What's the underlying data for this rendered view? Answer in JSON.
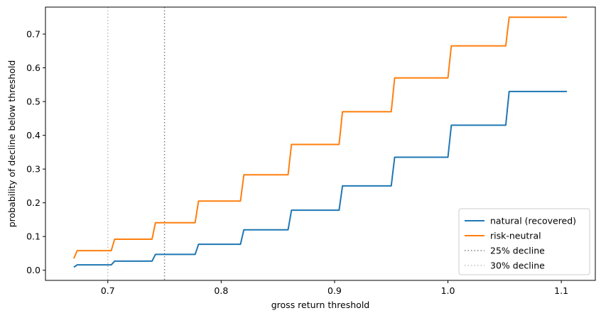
{
  "chart_data": {
    "type": "line",
    "xlabel": "gross return threshold",
    "ylabel": "probability of decline below threshold",
    "xlim": [
      0.645,
      1.13
    ],
    "ylim": [
      -0.03,
      0.78
    ],
    "xticks": [
      0.7,
      0.8,
      0.9,
      1.0,
      1.1
    ],
    "xtick_labels": [
      "0.7",
      "0.8",
      "0.9",
      "1.0",
      "1.1"
    ],
    "yticks": [
      0.0,
      0.1,
      0.2,
      0.3,
      0.4,
      0.5,
      0.6,
      0.7
    ],
    "ytick_labels": [
      "0.0",
      "0.1",
      "0.2",
      "0.3",
      "0.4",
      "0.5",
      "0.6",
      "0.7"
    ],
    "grid": false,
    "legend_position": "bottom-right",
    "series": [
      {
        "name": "natural (recovered)",
        "color": "#1f77b4",
        "style": "solid",
        "x": [
          0.67,
          0.673,
          0.703,
          0.706,
          0.739,
          0.742,
          0.777,
          0.78,
          0.817,
          0.82,
          0.859,
          0.862,
          0.904,
          0.907,
          0.95,
          0.953,
          1.0,
          1.003,
          1.051,
          1.054,
          1.105
        ],
        "y": [
          0.009,
          0.016,
          0.016,
          0.027,
          0.027,
          0.047,
          0.047,
          0.077,
          0.077,
          0.12,
          0.12,
          0.178,
          0.178,
          0.25,
          0.25,
          0.335,
          0.335,
          0.43,
          0.43,
          0.53,
          0.53
        ]
      },
      {
        "name": "risk-neutral",
        "color": "#ff7f0e",
        "style": "solid",
        "x": [
          0.67,
          0.673,
          0.703,
          0.706,
          0.739,
          0.742,
          0.777,
          0.78,
          0.817,
          0.82,
          0.859,
          0.862,
          0.904,
          0.907,
          0.95,
          0.953,
          1.0,
          1.003,
          1.051,
          1.054,
          1.105
        ],
        "y": [
          0.035,
          0.058,
          0.058,
          0.092,
          0.092,
          0.141,
          0.141,
          0.205,
          0.205,
          0.283,
          0.283,
          0.373,
          0.373,
          0.47,
          0.47,
          0.57,
          0.57,
          0.665,
          0.665,
          0.75,
          0.75
        ]
      }
    ],
    "reference_lines": [
      {
        "name": "25% decline",
        "x": 0.75,
        "color": "#7f7f7f",
        "style": "dotted"
      },
      {
        "name": "30% decline",
        "x": 0.7,
        "color": "#bdbdbd",
        "style": "dotted"
      }
    ]
  }
}
